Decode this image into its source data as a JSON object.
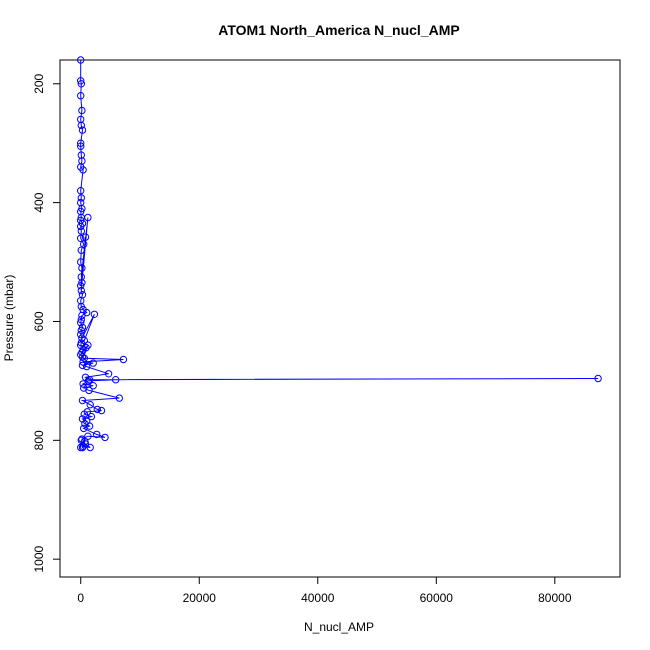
{
  "chart_data": {
    "type": "scatter",
    "title": "ATOM1 North_America N_nucl_AMP",
    "xlabel": "N_nucl_AMP",
    "ylabel": "Pressure (mbar)",
    "xlim": [
      -3500,
      91000
    ],
    "ylim": [
      1030,
      160
    ],
    "y_reversed": true,
    "x_ticks": [
      0,
      20000,
      40000,
      60000,
      80000
    ],
    "x_tick_labels": [
      "0",
      "20000",
      "40000",
      "60000",
      "80000"
    ],
    "y_ticks": [
      200,
      400,
      600,
      800,
      1000
    ],
    "y_tick_labels": [
      "200",
      "400",
      "600",
      "800",
      "1000"
    ],
    "grid": false,
    "color": "#0000ff",
    "series": [
      {
        "x": [
          0,
          0,
          100,
          0,
          200,
          0,
          100,
          300,
          0,
          0,
          100,
          200,
          0,
          400,
          0,
          100,
          0,
          200,
          0,
          100,
          0,
          300,
          0,
          100,
          0,
          500,
          100,
          0,
          200,
          100,
          1200,
          200,
          0,
          800,
          100,
          300,
          0,
          100,
          400,
          1000,
          200,
          100,
          0,
          300,
          100,
          0,
          200,
          2300,
          600,
          100,
          0,
          900,
          400,
          200,
          0,
          1200,
          300,
          600,
          7200,
          400,
          2100,
          300,
          1000,
          4700,
          800,
          1500,
          87300,
          5900,
          1300,
          400,
          2100,
          500,
          1400,
          6500,
          300,
          1600,
          2800,
          3500,
          1100,
          600,
          1800,
          300,
          1000,
          700,
          1500,
          500,
          2700,
          4100,
          1200,
          200,
          700,
          400,
          1600,
          800,
          300,
          100,
          0
        ],
        "y": [
          160,
          195,
          200,
          220,
          245,
          260,
          270,
          278,
          300,
          305,
          320,
          330,
          340,
          345,
          380,
          392,
          400,
          410,
          415,
          425,
          430,
          435,
          440,
          448,
          460,
          470,
          480,
          500,
          510,
          525,
          425,
          535,
          540,
          458,
          548,
          555,
          565,
          575,
          580,
          585,
          590,
          597,
          602,
          610,
          615,
          622,
          628,
          588,
          632,
          636,
          640,
          644,
          648,
          652,
          656,
          640,
          660,
          662,
          664,
          668,
          670,
          674,
          676,
          688,
          694,
          698,
          696,
          698,
          700,
          705,
          708,
          712,
          716,
          729,
          733,
          740,
          748,
          750,
          752,
          756,
          760,
          764,
          768,
          772,
          776,
          780,
          790,
          795,
          793,
          798,
          802,
          810,
          812,
          806,
          812,
          800,
          812
        ]
      }
    ]
  }
}
